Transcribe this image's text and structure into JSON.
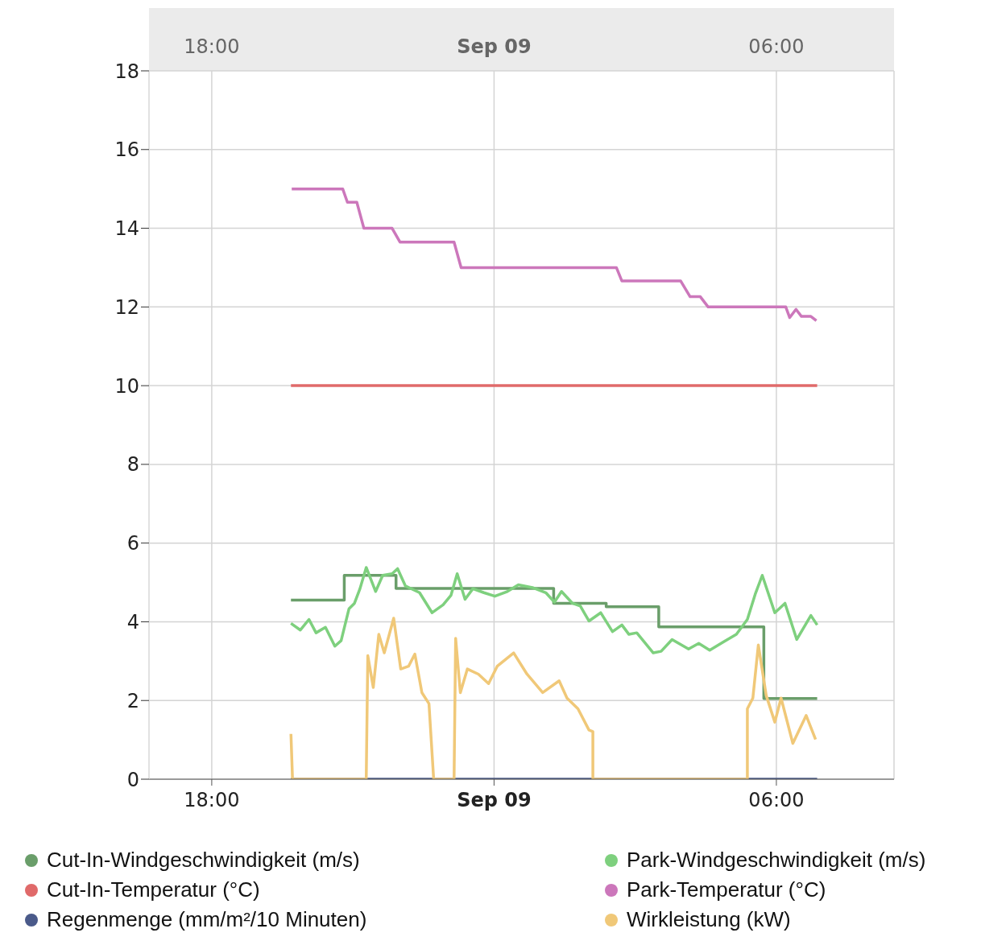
{
  "chart_data": {
    "type": "line",
    "xlim": [
      "--09-08T16:40",
      "--09-09T08:30"
    ],
    "xticks": [
      {
        "value": "--09-08T18:00",
        "label": "18:00"
      },
      {
        "value": "--09-09",
        "label": "Sep 09"
      },
      {
        "value": "--09-09T06:00",
        "label": "06:00"
      }
    ],
    "x2lim": [
      "--09-08T16:40",
      "--09-09T08:30"
    ],
    "x2ticks": [
      {
        "value": "--09-08T18:00",
        "label": "18:00"
      },
      {
        "value": "--09-09",
        "label": "Sep 09"
      },
      {
        "value": "--09-09T06:00",
        "label": "06:00"
      }
    ],
    "ylim": [
      0,
      18
    ],
    "yticks": [
      0,
      2,
      4,
      6,
      8,
      10,
      12,
      14,
      16,
      18
    ],
    "grid": true,
    "legend": "bottom",
    "series": [
      {
        "name": "Cut-In-Windgeschwindigkeit (m/s)",
        "color": "#6a9e6a",
        "x": [
          "--09-08T19:41",
          "--09-08T20:49",
          "--09-08T20:49",
          "--09-08T21:55",
          "--09-08T21:55",
          "--09-09T01:16",
          "--09-09T01:16",
          "--09-09T02:23",
          "--09-09T02:23",
          "--09-09T03:30",
          "--09-09T03:30",
          "--09-09T05:44",
          "--09-09T05:44",
          "--09-09T06:52"
        ],
        "values": [
          4.55,
          4.55,
          5.18,
          5.18,
          4.85,
          4.85,
          4.47,
          4.47,
          4.38,
          4.38,
          3.87,
          3.87,
          2.05,
          2.05
        ]
      },
      {
        "name": "Park-Windgeschwindigkeit (m/s)",
        "color": "#7ed07e",
        "x": [
          "--09-08T19:41",
          "--09-08T19:53",
          "--09-08T20:04",
          "--09-08T20:13",
          "--09-08T20:25",
          "--09-08T20:37",
          "--09-08T20:45",
          "--09-08T20:55",
          "--09-08T21:02",
          "--09-08T21:09",
          "--09-08T21:17",
          "--09-08T21:29",
          "--09-08T21:38",
          "--09-08T21:50",
          "--09-08T21:57",
          "--09-08T22:07",
          "--09-08T22:25",
          "--09-08T22:41",
          "--09-08T22:55",
          "--09-08T23:05",
          "--09-08T23:13",
          "--09-08T23:23",
          "--09-08T23:33",
          "--09-08T23:47",
          "--09-09T00:01",
          "--09-09T00:17",
          "--09-09T00:31",
          "--09-09T00:49",
          "--09-09T01:06",
          "--09-09T01:17",
          "--09-09T01:26",
          "--09-09T01:40",
          "--09-09T01:50",
          "--09-09T02:01",
          "--09-09T02:16",
          "--09-09T02:31",
          "--09-09T02:43",
          "--09-09T02:52",
          "--09-09T03:02",
          "--09-09T03:23",
          "--09-09T03:33",
          "--09-09T03:47",
          "--09-09T04:08",
          "--09-09T04:21",
          "--09-09T04:35",
          "--09-09T04:52",
          "--09-09T05:09",
          "--09-09T05:23",
          "--09-09T05:33",
          "--09-09T05:42",
          "--09-09T05:58",
          "--09-09T06:11",
          "--09-09T06:26",
          "--09-09T06:44",
          "--09-09T06:52"
        ],
        "values": [
          3.96,
          3.79,
          4.06,
          3.72,
          3.86,
          3.38,
          3.52,
          4.33,
          4.47,
          4.84,
          5.38,
          4.77,
          5.18,
          5.22,
          5.35,
          4.91,
          4.74,
          4.23,
          4.43,
          4.67,
          5.22,
          4.57,
          4.84,
          4.74,
          4.65,
          4.77,
          4.94,
          4.87,
          4.74,
          4.5,
          4.77,
          4.47,
          4.4,
          4.02,
          4.23,
          3.75,
          3.92,
          3.68,
          3.72,
          3.21,
          3.25,
          3.55,
          3.31,
          3.45,
          3.28,
          3.48,
          3.68,
          4.06,
          4.7,
          5.18,
          4.23,
          4.47,
          3.55,
          4.16,
          3.92
        ]
      },
      {
        "name": "Cut-In-Temperatur  (°C)",
        "color": "#e06a6a",
        "x": [
          "--09-08T19:41",
          "--09-09T06:52"
        ],
        "values": [
          10,
          10
        ]
      },
      {
        "name": "Park-Temperatur  (°C)",
        "color": "#cc77bb",
        "x": [
          "--09-08T19:42",
          "--09-08T20:47",
          "--09-08T20:53",
          "--09-08T21:05",
          "--09-08T21:14",
          "--09-08T21:50",
          "--09-08T22:00",
          "--09-08T23:09",
          "--09-08T23:18",
          "--09-09T02:36",
          "--09-09T02:43",
          "--09-09T03:58",
          "--09-09T04:10",
          "--09-09T04:23",
          "--09-09T04:33",
          "--09-09T06:12",
          "--09-09T06:17",
          "--09-09T06:25",
          "--09-09T06:32",
          "--09-09T06:44",
          "--09-09T06:51"
        ],
        "values": [
          15.0,
          15.0,
          14.66,
          14.66,
          14.0,
          14.0,
          13.65,
          13.65,
          13.0,
          13.0,
          12.66,
          12.66,
          12.26,
          12.26,
          12.0,
          12.0,
          11.73,
          11.94,
          11.76,
          11.76,
          11.65
        ]
      },
      {
        "name": "Regenmenge (mm/m²/10 Minuten)",
        "color": "#4a5a8a",
        "x": [
          "--09-08T19:41",
          "--09-09T06:52"
        ],
        "values": [
          0,
          0
        ]
      },
      {
        "name": "Wirkleistung (kW)",
        "color": "#f0c878",
        "x": [
          "--09-08T19:41",
          "--09-08T19:43",
          "--09-08T21:17",
          "--09-08T21:19",
          "--09-08T21:26",
          "--09-08T21:33",
          "--09-08T21:40",
          "--09-08T21:52",
          "--09-08T22:01",
          "--09-08T22:11",
          "--09-08T22:19",
          "--09-08T22:28",
          "--09-08T22:37",
          "--09-08T22:43",
          "--09-08T23:09",
          "--09-08T23:11",
          "--09-08T23:17",
          "--09-08T23:26",
          "--09-08T23:40",
          "--09-08T23:53",
          "--09-09T00:04",
          "--09-09T00:25",
          "--09-09T00:42",
          "--09-09T01:02",
          "--09-09T01:23",
          "--09-09T01:33",
          "--09-09T01:47",
          "--09-09T02:01",
          "--09-09T02:06",
          "--09-09T02:06",
          "--09-09T05:23",
          "--09-09T05:23",
          "--09-09T05:30",
          "--09-09T05:37",
          "--09-09T05:47",
          "--09-09T05:58",
          "--09-09T06:06",
          "--09-09T06:21",
          "--09-09T06:38",
          "--09-09T06:50"
        ],
        "values": [
          1.15,
          0,
          0,
          3.14,
          2.33,
          3.68,
          3.21,
          4.09,
          2.8,
          2.87,
          3.18,
          2.2,
          1.92,
          0,
          0,
          3.58,
          2.2,
          2.8,
          2.67,
          2.43,
          2.87,
          3.21,
          2.67,
          2.2,
          2.5,
          2.06,
          1.79,
          1.25,
          1.21,
          0,
          0,
          1.79,
          2.06,
          3.41,
          2.13,
          1.45,
          2.06,
          0.91,
          1.62,
          1.01
        ]
      }
    ]
  }
}
